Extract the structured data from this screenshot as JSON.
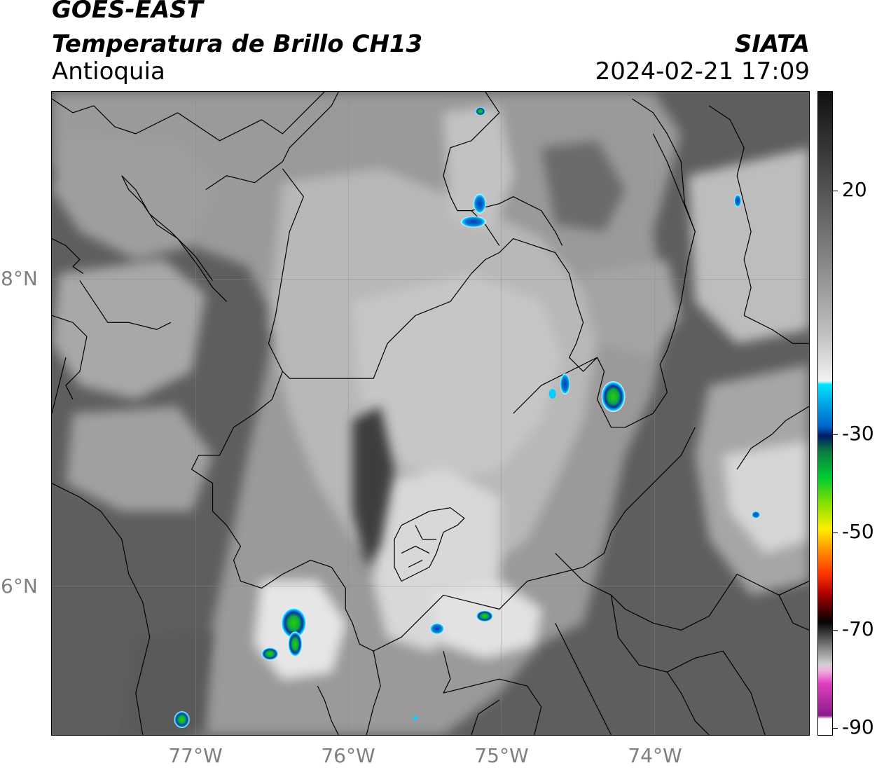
{
  "header": {
    "satellite": "GOES-EAST",
    "product": "Temperatura de Brillo CH13",
    "region": "Antioquia",
    "brand": "SIATA",
    "datetime": "2024-02-21 17:09"
  },
  "axes": {
    "latitude_labels": [
      "8°N",
      "6°N"
    ],
    "longitude_labels": [
      "77°W",
      "76°W",
      "75°W",
      "74°W"
    ]
  },
  "colorbar": {
    "tick_labels": [
      "20",
      "-30",
      "-50",
      "-70",
      "-90"
    ],
    "colors": {
      "warm_black": "#111111",
      "neutral_white": "#f5f5f5",
      "cyan": "#00e5ff",
      "dark_blue": "#001a66",
      "green": "#00cc33",
      "yellow": "#ffee00",
      "orange": "#ff8800",
      "red": "#e60000",
      "dark_red": "#330000",
      "gray": "#bbbbbb",
      "magenta": "#e040c0",
      "purple": "#8a1a8a"
    }
  },
  "map": {
    "background": "#5c5c5c",
    "cloud_gray": "#c9c9c9",
    "boundary_color": "#000000",
    "grid_color": "#8a8a8a"
  }
}
